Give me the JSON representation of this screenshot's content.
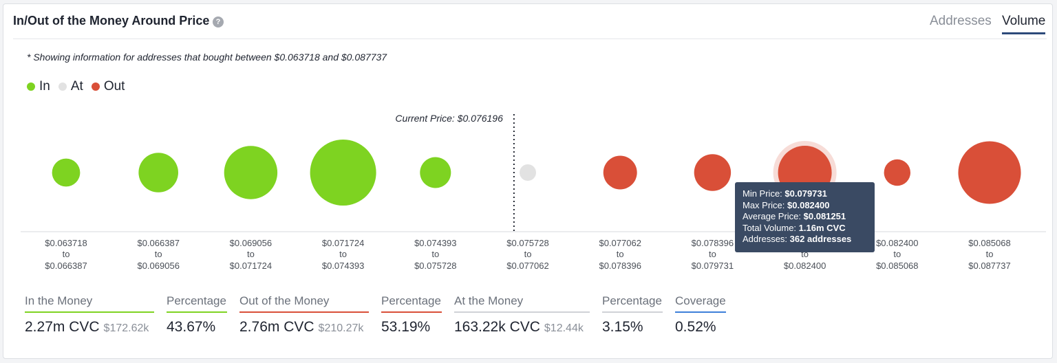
{
  "header": {
    "title": "In/Out of the Money Around Price",
    "help_icon": "?",
    "tabs": [
      "Addresses",
      "Volume"
    ],
    "active_tab": "Volume"
  },
  "note": "* Showing information for addresses that bought between $0.063718 and $0.087737",
  "colors": {
    "in": "#7ed321",
    "at": "#e2e2e2",
    "out": "#d94f38",
    "tooltip_bg": "#3a4a63"
  },
  "chart_data": {
    "type": "bubble",
    "legend": [
      {
        "name": "In",
        "color": "#7ed321"
      },
      {
        "name": "At",
        "color": "#e2e2e2"
      },
      {
        "name": "Out",
        "color": "#d94f38"
      }
    ],
    "current_price_label": "Current Price: $0.076196",
    "current_price": 0.076196,
    "buckets": [
      {
        "from": "$0.063718",
        "to": "$0.066387",
        "status": "in",
        "size": 0.18
      },
      {
        "from": "$0.066387",
        "to": "$0.069056",
        "status": "in",
        "size": 0.36
      },
      {
        "from": "$0.069056",
        "to": "$0.071724",
        "status": "in",
        "size": 0.65
      },
      {
        "from": "$0.071724",
        "to": "$0.074393",
        "status": "in",
        "size": 1.0
      },
      {
        "from": "$0.074393",
        "to": "$0.075728",
        "status": "in",
        "size": 0.22
      },
      {
        "from": "$0.075728",
        "to": "$0.077062",
        "status": "at",
        "size": 0.06
      },
      {
        "from": "$0.077062",
        "to": "$0.078396",
        "status": "out",
        "size": 0.26
      },
      {
        "from": "$0.078396",
        "to": "$0.079731",
        "status": "out",
        "size": 0.31
      },
      {
        "from": "$0.079731",
        "to": "$0.082400",
        "status": "out",
        "size": 0.66,
        "highlighted": true
      },
      {
        "from": "$0.082400",
        "to": "$0.085068",
        "status": "out",
        "size": 0.16
      },
      {
        "from": "$0.085068",
        "to": "$0.087737",
        "status": "out",
        "size": 0.9
      }
    ],
    "to_word": "to",
    "tooltip": [
      {
        "label": "Min Price:",
        "value": "$0.079731"
      },
      {
        "label": "Max Price:",
        "value": "$0.082400"
      },
      {
        "label": "Average Price:",
        "value": "$0.081251"
      },
      {
        "label": "Total Volume:",
        "value": "1.16m CVC"
      },
      {
        "label": "Addresses:",
        "value": "362 addresses"
      }
    ]
  },
  "stats": [
    {
      "label": "In the Money",
      "value": "2.27m CVC",
      "sub": "$172.62k",
      "underline": "#7ed321"
    },
    {
      "label": "Percentage",
      "value": "43.67%",
      "sub": "",
      "underline": "#7ed321"
    },
    {
      "label": "Out of the Money",
      "value": "2.76m CVC",
      "sub": "$210.27k",
      "underline": "#d94f38"
    },
    {
      "label": "Percentage",
      "value": "53.19%",
      "sub": "",
      "underline": "#d94f38"
    },
    {
      "label": "At the Money",
      "value": "163.22k CVC",
      "sub": "$12.44k",
      "underline": "#cfd2d6"
    },
    {
      "label": "Percentage",
      "value": "3.15%",
      "sub": "",
      "underline": "#cfd2d6"
    },
    {
      "label": "Coverage",
      "value": "0.52%",
      "sub": "",
      "underline": "#3d7fd9"
    }
  ]
}
